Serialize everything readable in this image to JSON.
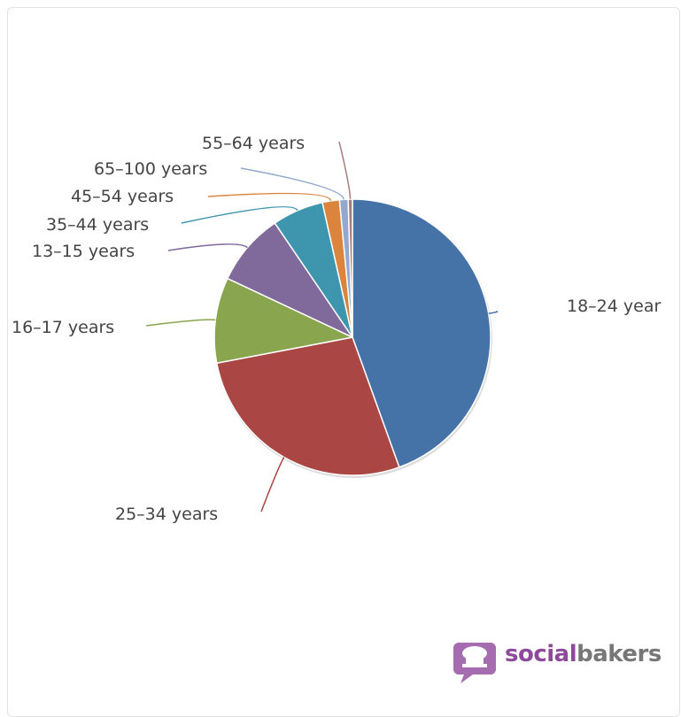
{
  "chart_data": {
    "type": "pie",
    "slices": [
      {
        "label": "18–24 year",
        "value": 44.5,
        "color": "#4572a7"
      },
      {
        "label": "25–34 years",
        "value": 27.5,
        "color": "#aa4643"
      },
      {
        "label": "16–17 years",
        "value": 10.0,
        "color": "#89a54e"
      },
      {
        "label": "13–15 years",
        "value": 8.5,
        "color": "#80699b"
      },
      {
        "label": "35–44 years",
        "value": 6.0,
        "color": "#3d96ae"
      },
      {
        "label": "45–54 years",
        "value": 2.0,
        "color": "#db843d"
      },
      {
        "label": "65–100 years",
        "value": 1.0,
        "color": "#92a8cd"
      },
      {
        "label": "55–64 years",
        "value": 0.5,
        "color": "#a47d7c"
      }
    ]
  },
  "brand": {
    "part1": "social",
    "part2": "bakers"
  }
}
